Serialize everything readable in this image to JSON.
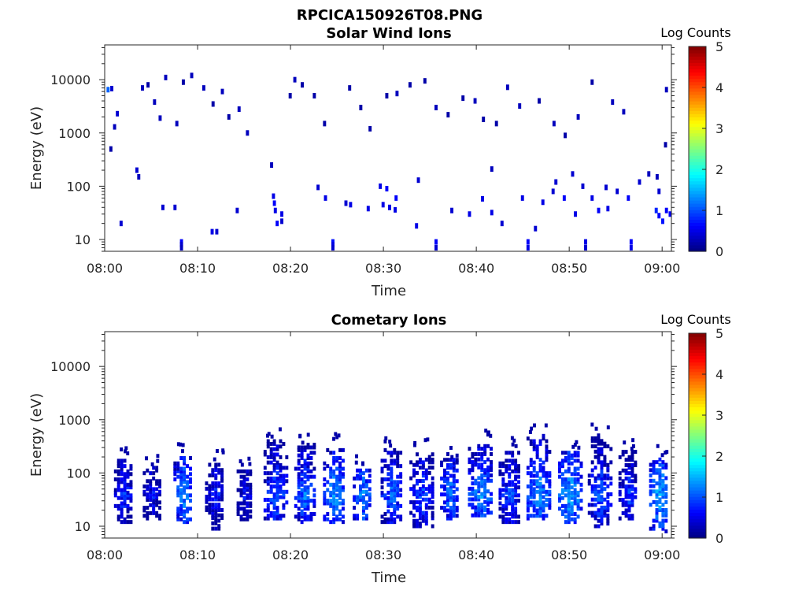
{
  "figure_title": "RPCICA150926T08.PNG",
  "chart_data": [
    {
      "type": "heatmap",
      "title": "Solar Wind Ions",
      "xlabel": "Time",
      "ylabel": "Energy (eV)",
      "yscale": "log",
      "ylim": [
        6,
        45000
      ],
      "xlim": [
        "08:00",
        "09:01"
      ],
      "xticks": [
        "08:00",
        "08:10",
        "08:20",
        "08:30",
        "08:40",
        "08:50",
        "09:00"
      ],
      "yticks": [
        10,
        100,
        1000,
        10000
      ],
      "ytick_labels": [
        "10",
        "100",
        "1000",
        "10000"
      ],
      "colorbar": {
        "label": "Log Counts",
        "ticks": [
          "0",
          "1",
          "2",
          "3",
          "4",
          "5"
        ],
        "range": [
          0,
          5
        ],
        "colormap": "jet"
      },
      "grid": false,
      "description": "sparse scattered isolated detections across all energies",
      "cells": [
        [
          0.2,
          6500,
          1.1
        ],
        [
          0.6,
          6800,
          0.4
        ],
        [
          0.9,
          1300,
          0.3
        ],
        [
          1.2,
          2300,
          0.4
        ],
        [
          3.3,
          200,
          0.4
        ],
        [
          0.5,
          500,
          0.2
        ],
        [
          3.9,
          7000,
          0.3
        ],
        [
          4.5,
          8000,
          0.2
        ],
        [
          5.2,
          3800,
          0.3
        ],
        [
          5.8,
          1900,
          0.3
        ],
        [
          6.4,
          11000,
          0.3
        ],
        [
          7.6,
          1500,
          0.3
        ],
        [
          8.3,
          9000,
          0.2
        ],
        [
          9.2,
          12000,
          0.3
        ],
        [
          10.5,
          7000,
          0.3
        ],
        [
          11.5,
          3500,
          0.2
        ],
        [
          12.5,
          6000,
          0.3
        ],
        [
          13.2,
          2000,
          0.2
        ],
        [
          14.3,
          2800,
          0.3
        ],
        [
          15.2,
          1000,
          0.3
        ],
        [
          19.8,
          5000,
          0.2
        ],
        [
          20.3,
          10000,
          0.3
        ],
        [
          21.1,
          8000,
          0.2
        ],
        [
          22.4,
          5000,
          0.2
        ],
        [
          23.5,
          1500,
          0.2
        ],
        [
          26.2,
          7000,
          0.2
        ],
        [
          27.4,
          3000,
          0.2
        ],
        [
          28.4,
          1200,
          0.2
        ],
        [
          30.2,
          5000,
          0.2
        ],
        [
          31.3,
          5500,
          0.3
        ],
        [
          32.7,
          8000,
          0.2
        ],
        [
          34.3,
          9500,
          0.2
        ],
        [
          35.5,
          3000,
          0.3
        ],
        [
          36.8,
          2200,
          0.2
        ],
        [
          38.4,
          4500,
          0.2
        ],
        [
          39.7,
          4000,
          0.3
        ],
        [
          40.6,
          1800,
          0.2
        ],
        [
          42.0,
          1500,
          0.2
        ],
        [
          43.2,
          7200,
          0.3
        ],
        [
          44.5,
          3200,
          0.3
        ],
        [
          46.6,
          4000,
          0.2
        ],
        [
          48.2,
          1500,
          0.3
        ],
        [
          49.4,
          900,
          0.2
        ],
        [
          50.8,
          2000,
          0.3
        ],
        [
          52.3,
          9000,
          0.2
        ],
        [
          54.5,
          3800,
          0.3
        ],
        [
          55.7,
          2500,
          0.3
        ],
        [
          60.3,
          6500,
          0.3
        ],
        [
          60.2,
          600,
          0.2
        ],
        [
          59.3,
          150,
          0.3
        ],
        [
          8.1,
          9,
          0.6
        ],
        [
          8.1,
          8,
          0.4
        ],
        [
          8.1,
          7,
          0.3
        ],
        [
          11.4,
          14,
          0.5
        ],
        [
          11.9,
          14,
          0.4
        ],
        [
          18.0,
          65,
          0.5
        ],
        [
          18.1,
          48,
          0.6
        ],
        [
          18.2,
          35,
          0.5
        ],
        [
          18.4,
          20,
          0.6
        ],
        [
          18.9,
          30,
          0.5
        ],
        [
          18.9,
          22,
          0.4
        ],
        [
          24.4,
          9,
          0.7
        ],
        [
          24.4,
          8,
          0.5
        ],
        [
          24.4,
          7,
          0.4
        ],
        [
          25.8,
          48,
          0.4
        ],
        [
          26.3,
          45,
          0.5
        ],
        [
          28.2,
          38,
          0.5
        ],
        [
          29.5,
          100,
          0.5
        ],
        [
          30.2,
          90,
          0.6
        ],
        [
          31.2,
          60,
          0.6
        ],
        [
          31.1,
          36,
          0.5
        ],
        [
          30.5,
          40,
          0.5
        ],
        [
          33.4,
          18,
          0.5
        ],
        [
          35.5,
          9,
          0.6
        ],
        [
          35.5,
          7,
          0.4
        ],
        [
          37.2,
          35,
          0.4
        ],
        [
          39.1,
          30,
          0.5
        ],
        [
          40.5,
          58,
          0.5
        ],
        [
          41.5,
          32,
          0.5
        ],
        [
          42.6,
          20,
          0.4
        ],
        [
          44.8,
          60,
          0.5
        ],
        [
          45.4,
          9,
          0.6
        ],
        [
          45.4,
          7,
          0.5
        ],
        [
          46.2,
          16,
          0.4
        ],
        [
          47.0,
          50,
          0.5
        ],
        [
          48.1,
          80,
          0.4
        ],
        [
          49.3,
          60,
          0.6
        ],
        [
          50.5,
          30,
          0.5
        ],
        [
          51.6,
          9,
          0.5
        ],
        [
          51.6,
          7,
          0.4
        ],
        [
          52.3,
          60,
          0.5
        ],
        [
          53.0,
          35,
          0.6
        ],
        [
          54.0,
          38,
          0.5
        ],
        [
          55.0,
          80,
          0.4
        ],
        [
          56.2,
          60,
          0.6
        ],
        [
          56.5,
          9,
          0.6
        ],
        [
          56.5,
          7,
          0.5
        ],
        [
          59.2,
          35,
          0.8
        ],
        [
          59.5,
          28,
          0.6
        ],
        [
          59.9,
          22,
          0.7
        ],
        [
          60.3,
          35,
          0.6
        ],
        [
          60.7,
          30,
          0.6
        ],
        [
          59.5,
          80,
          0.4
        ],
        [
          58.4,
          170,
          0.3
        ],
        [
          1.6,
          20,
          0.4
        ],
        [
          3.5,
          150,
          0.3
        ],
        [
          6.1,
          40,
          0.4
        ],
        [
          7.4,
          40,
          0.4
        ],
        [
          14.1,
          35,
          0.4
        ],
        [
          17.8,
          250,
          0.3
        ],
        [
          22.8,
          95,
          0.4
        ],
        [
          23.6,
          60,
          0.5
        ],
        [
          29.8,
          45,
          0.5
        ],
        [
          33.6,
          130,
          0.4
        ],
        [
          41.5,
          210,
          0.3
        ],
        [
          48.4,
          120,
          0.4
        ],
        [
          50.2,
          170,
          0.4
        ],
        [
          51.3,
          100,
          0.4
        ],
        [
          53.8,
          95,
          0.4
        ],
        [
          57.4,
          120,
          0.4
        ]
      ]
    },
    {
      "type": "heatmap",
      "title": "Cometary Ions",
      "xlabel": "Time",
      "ylabel": "Energy (eV)",
      "yscale": "log",
      "ylim": [
        6,
        45000
      ],
      "xlim": [
        "08:00",
        "09:01"
      ],
      "xticks": [
        "08:00",
        "08:10",
        "08:20",
        "08:30",
        "08:40",
        "08:50",
        "09:00"
      ],
      "yticks": [
        10,
        100,
        1000,
        10000
      ],
      "ytick_labels": [
        "10",
        "100",
        "1000",
        "10000"
      ],
      "colorbar": {
        "label": "Log Counts",
        "ticks": [
          "0",
          "1",
          "2",
          "3",
          "4",
          "5"
        ],
        "range": [
          0,
          5
        ],
        "colormap": "jet"
      },
      "grid": false,
      "description": "periodic bursts between ~10 and ~500 eV, peak near 30-60 eV",
      "bursts": [
        [
          1.9,
          0.9,
          12,
          170,
          0.9
        ],
        [
          5.0,
          0.9,
          14,
          130,
          0.7
        ],
        [
          8.4,
          1.0,
          12,
          200,
          1.3
        ],
        [
          11.8,
          1.0,
          9,
          150,
          0.8
        ],
        [
          15.0,
          0.8,
          12,
          120,
          0.7
        ],
        [
          18.3,
          1.2,
          14,
          400,
          1.1
        ],
        [
          21.4,
          1.0,
          12,
          350,
          1.2
        ],
        [
          24.6,
          1.1,
          12,
          300,
          1.4
        ],
        [
          27.6,
          0.9,
          14,
          120,
          1.3
        ],
        [
          30.8,
          1.1,
          12,
          300,
          1.1
        ],
        [
          34.0,
          1.2,
          10,
          250,
          1.0
        ],
        [
          37.1,
          1.0,
          14,
          180,
          1.2
        ],
        [
          40.4,
          1.3,
          16,
          350,
          1.3
        ],
        [
          43.5,
          1.1,
          12,
          260,
          1.0
        ],
        [
          46.6,
          1.2,
          14,
          500,
          1.4
        ],
        [
          50.0,
          1.2,
          12,
          250,
          1.5
        ],
        [
          53.2,
          1.2,
          10,
          450,
          1.1
        ],
        [
          56.3,
          1.0,
          14,
          250,
          0.9
        ],
        [
          59.6,
          1.0,
          8,
          200,
          1.5
        ]
      ]
    }
  ]
}
